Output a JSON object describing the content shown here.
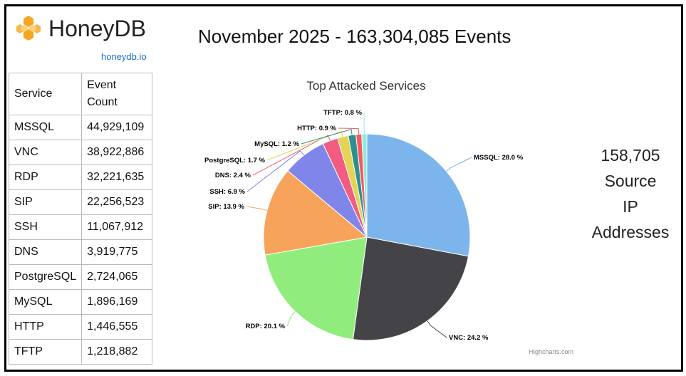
{
  "brand": {
    "name": "HoneyDB",
    "link": "honeydb.io"
  },
  "headline": "November 2025 - 163,304,085 Events",
  "table": {
    "headers": [
      "Service",
      "Event Count"
    ],
    "rows": [
      [
        "MSSQL",
        "44,929,109"
      ],
      [
        "VNC",
        "38,922,886"
      ],
      [
        "RDP",
        "32,221,635"
      ],
      [
        "SIP",
        "22,256,523"
      ],
      [
        "SSH",
        "11,067,912"
      ],
      [
        "DNS",
        "3,919,775"
      ],
      [
        "PostgreSQL",
        "2,724,065"
      ],
      [
        "MySQL",
        "1,896,169"
      ],
      [
        "HTTP",
        "1,446,555"
      ],
      [
        "TFTP",
        "1,218,882"
      ]
    ]
  },
  "ip_summary": {
    "count": "158,705",
    "line2": "Source",
    "line3": "IP",
    "line4": "Addresses"
  },
  "chart_data": {
    "type": "pie",
    "title": "Top Attacked Services",
    "credits": "Highcharts.com",
    "slices": [
      {
        "name": "MSSQL",
        "value": 28.0,
        "label": "MSSQL: 28.0 %",
        "color": "#7cb5ec"
      },
      {
        "name": "VNC",
        "value": 24.2,
        "label": "VNC: 24.2 %",
        "color": "#434348"
      },
      {
        "name": "RDP",
        "value": 20.1,
        "label": "RDP: 20.1 %",
        "color": "#90ed7d"
      },
      {
        "name": "SIP",
        "value": 13.9,
        "label": "SIP: 13.9 %",
        "color": "#f7a35c"
      },
      {
        "name": "SSH",
        "value": 6.9,
        "label": "SSH: 6.9 %",
        "color": "#8085e9"
      },
      {
        "name": "DNS",
        "value": 2.4,
        "label": "DNS: 2.4 %",
        "color": "#f15c80"
      },
      {
        "name": "PostgreSQL",
        "value": 1.7,
        "label": "PostgreSQL: 1.7 %",
        "color": "#e4d354"
      },
      {
        "name": "MySQL",
        "value": 1.2,
        "label": "MySQL: 1.2 %",
        "color": "#2b908f"
      },
      {
        "name": "HTTP",
        "value": 0.9,
        "label": "HTTP: 0.9 %",
        "color": "#f45b5b"
      },
      {
        "name": "TFTP",
        "value": 0.8,
        "label": "TFTP: 0.8 %",
        "color": "#91e8e1"
      }
    ]
  }
}
